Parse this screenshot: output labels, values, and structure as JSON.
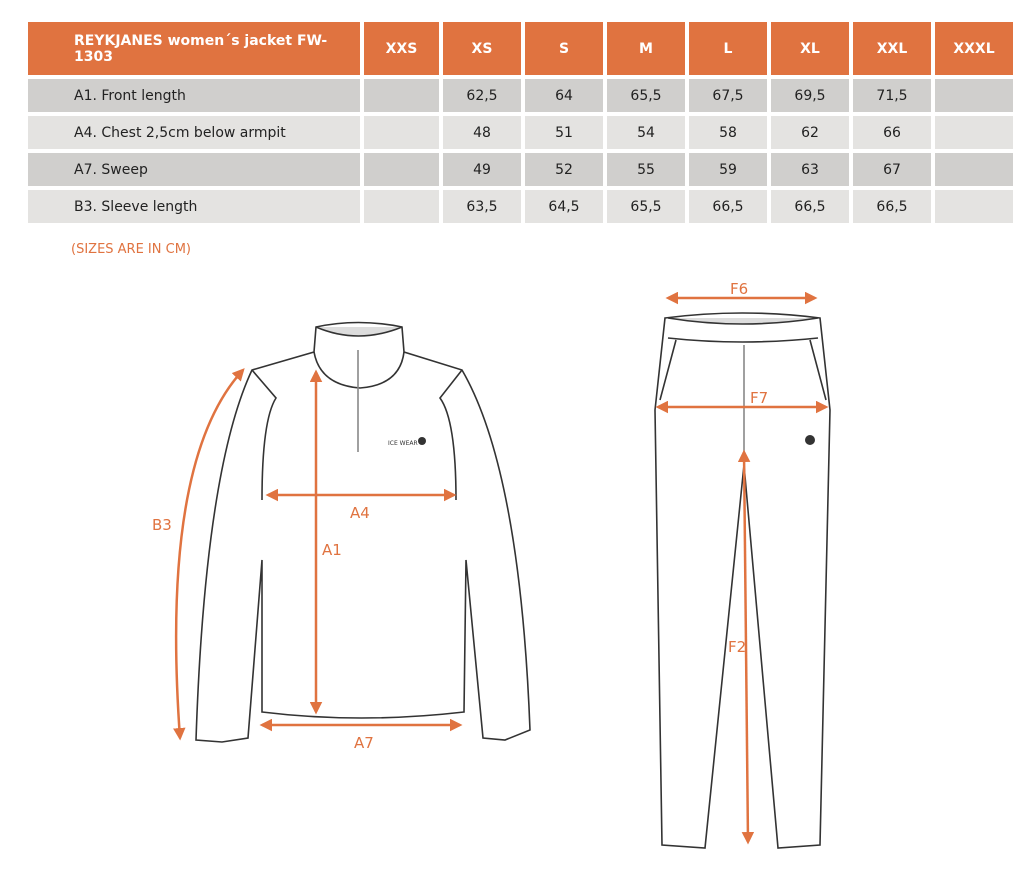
{
  "table": {
    "title": "REYKJANES women´s jacket FW-1303",
    "sizes": [
      "XXS",
      "XS",
      "S",
      "M",
      "L",
      "XL",
      "XXL",
      "XXXL"
    ],
    "rows": [
      {
        "label": "A1. Front length",
        "values": [
          "",
          "62,5",
          "64",
          "65,5",
          "67,5",
          "69,5",
          "71,5",
          ""
        ]
      },
      {
        "label": "A4. Chest 2,5cm below armpit",
        "values": [
          "",
          "48",
          "51",
          "54",
          "58",
          "62",
          "66",
          ""
        ]
      },
      {
        "label": "A7. Sweep",
        "values": [
          "",
          "49",
          "52",
          "55",
          "59",
          "63",
          "67",
          ""
        ]
      },
      {
        "label": "B3. Sleeve length",
        "values": [
          "",
          "63,5",
          "64,5",
          "65,5",
          "66,5",
          "66,5",
          "66,5",
          ""
        ]
      }
    ]
  },
  "note": "(SIZES ARE IN CM)",
  "diagram": {
    "jacket_labels": {
      "a1": "A1",
      "a4": "A4",
      "a7": "A7",
      "b3": "B3"
    },
    "pants_labels": {
      "f6": "F6",
      "f7": "F7",
      "f2": "F2"
    },
    "logo": "ICE WEAR"
  },
  "colors": {
    "accent": "#e07340",
    "row_dark": "#d0cfcd",
    "row_light": "#e4e3e1"
  }
}
